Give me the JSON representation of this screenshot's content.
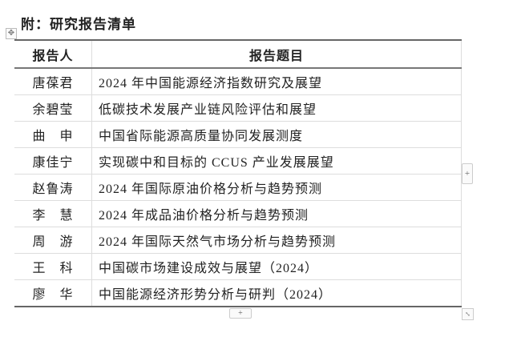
{
  "title": "附：研究报告清单",
  "table": {
    "headers": [
      "报告人",
      "报告题目"
    ],
    "rows": [
      {
        "author": "唐葆君",
        "topic": "2024 年中国能源经济指数研究及展望"
      },
      {
        "author": "余碧莹",
        "topic": "低碳技术发展产业链风险评估和展望"
      },
      {
        "author": "曲　申",
        "topic": "中国省际能源高质量协同发展测度"
      },
      {
        "author": "康佳宁",
        "topic": "实现碳中和目标的 CCUS 产业发展展望"
      },
      {
        "author": "赵鲁涛",
        "topic": "2024 年国际原油价格分析与趋势预测"
      },
      {
        "author": "李　慧",
        "topic": "2024 年成品油价格分析与趋势预测"
      },
      {
        "author": "周　游",
        "topic": "2024 年国际天然气市场分析与趋势预测"
      },
      {
        "author": "王　科",
        "topic": "中国碳市场建设成效与展望（2024）"
      },
      {
        "author": "廖　华",
        "topic": "中国能源经济形势分析与研判（2024）"
      }
    ]
  },
  "icons": {
    "move": "move-handle-icon",
    "add_column": "plus-icon",
    "add_row": "plus-icon",
    "resize": "resize-icon"
  }
}
